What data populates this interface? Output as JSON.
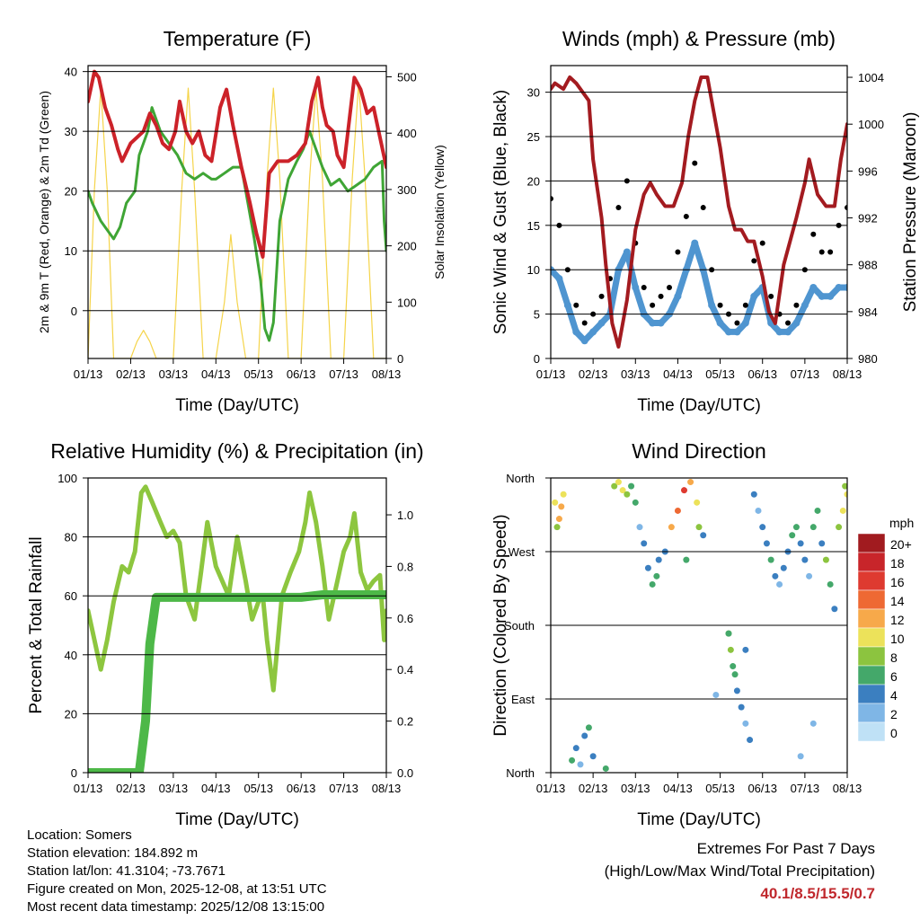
{
  "chart_data": [
    {
      "id": "temperature",
      "type": "line",
      "title": "Temperature (F)",
      "xlabel": "Time (Day/UTC)",
      "ylabel": "2m & 9m T (Red, Orange) & 2m Td (Green)",
      "y2label": "Solar Insolation (Yellow)",
      "categories": [
        "01/13",
        "02/13",
        "03/13",
        "04/13",
        "05/13",
        "06/13",
        "07/13",
        "08/13"
      ],
      "xlim": [
        0,
        7
      ],
      "ylim": [
        -8,
        41
      ],
      "y2lim": [
        0,
        520
      ],
      "yticks": [
        0,
        10,
        20,
        30,
        40
      ],
      "y2ticks": [
        0,
        100,
        200,
        300,
        400,
        500
      ],
      "colors": {
        "temp": "#cc2229",
        "dew": "#3fa535",
        "solar": "#f5d44a"
      },
      "series": [
        {
          "name": "2m & 9m T",
          "color": "#cc2229",
          "x": [
            0,
            0.15,
            0.25,
            0.4,
            0.55,
            0.7,
            0.8,
            1.0,
            1.3,
            1.45,
            1.6,
            1.75,
            1.9,
            2.05,
            2.15,
            2.3,
            2.45,
            2.6,
            2.75,
            2.9,
            3.1,
            3.25,
            3.4,
            3.6,
            3.8,
            3.95,
            4.1,
            4.25,
            4.45,
            4.7,
            4.9,
            5.1,
            5.25,
            5.4,
            5.5,
            5.6,
            5.75,
            5.85,
            6.0,
            6.1,
            6.25,
            6.4,
            6.55,
            6.7,
            6.85,
            7.0
          ],
          "values": [
            35,
            40,
            39,
            34,
            31,
            27,
            25,
            28,
            30,
            33,
            31,
            28,
            27,
            30,
            35,
            30,
            28,
            30,
            26,
            25,
            34,
            37,
            31,
            24,
            18,
            13,
            9,
            23,
            25,
            25,
            26,
            28,
            35,
            39,
            34,
            31,
            30,
            26,
            24,
            30,
            39,
            37,
            33,
            34,
            29,
            24
          ]
        },
        {
          "name": "2m Td",
          "color": "#3fa535",
          "x": [
            0,
            0.1,
            0.3,
            0.5,
            0.6,
            0.75,
            0.9,
            1.1,
            1.2,
            1.4,
            1.5,
            1.7,
            1.9,
            2.1,
            2.3,
            2.5,
            2.7,
            2.9,
            3.0,
            3.2,
            3.4,
            3.6,
            3.75,
            3.9,
            4.05,
            4.15,
            4.25,
            4.35,
            4.5,
            4.7,
            4.9,
            5.05,
            5.2,
            5.35,
            5.5,
            5.7,
            5.9,
            6.1,
            6.3,
            6.5,
            6.7,
            6.9,
            6.95,
            7.0
          ],
          "values": [
            20,
            18,
            15,
            13,
            12,
            14,
            18,
            20,
            26,
            30,
            34,
            30,
            28,
            26,
            23,
            22,
            23,
            22,
            22,
            23,
            24,
            24,
            18,
            12,
            5,
            -3,
            -5,
            -2,
            15,
            22,
            25,
            27,
            30,
            27,
            24,
            21,
            22,
            20,
            21,
            22,
            24,
            25,
            15,
            10
          ]
        },
        {
          "name": "Solar Insolation",
          "axis": "y2",
          "color": "#f5d44a",
          "x": [
            0,
            0.15,
            0.3,
            0.45,
            0.6,
            1.0,
            1.15,
            1.3,
            1.45,
            1.6,
            2.0,
            2.2,
            2.35,
            2.5,
            2.7,
            3.0,
            3.2,
            3.35,
            3.5,
            3.7,
            4.0,
            4.2,
            4.35,
            4.5,
            4.7,
            5.0,
            5.2,
            5.35,
            5.5,
            5.7,
            6.0,
            6.2,
            6.35,
            6.5,
            6.7,
            7.0
          ],
          "values": [
            0,
            300,
            480,
            300,
            0,
            0,
            30,
            50,
            30,
            0,
            0,
            300,
            480,
            300,
            0,
            0,
            100,
            220,
            100,
            0,
            0,
            320,
            480,
            320,
            0,
            0,
            320,
            480,
            320,
            0,
            0,
            320,
            490,
            320,
            0,
            0
          ]
        }
      ]
    },
    {
      "id": "winds",
      "type": "scatter",
      "title": "Winds (mph) & Pressure (mb)",
      "xlabel": "Time (Day/UTC)",
      "ylabel": "Sonic Wind & Gust (Blue, Black)",
      "y2label": "Station Pressure (Maroon)",
      "categories": [
        "01/13",
        "02/13",
        "03/13",
        "04/13",
        "05/13",
        "06/13",
        "07/13",
        "08/13"
      ],
      "xlim": [
        0,
        7
      ],
      "ylim": [
        0,
        33
      ],
      "y2lim": [
        980,
        1005
      ],
      "yticks": [
        0,
        5,
        10,
        15,
        20,
        25,
        30
      ],
      "y2ticks": [
        980,
        984,
        988,
        992,
        996,
        1000,
        1004
      ],
      "colors": {
        "wind": "#4f95d0",
        "gust": "#000000",
        "pressure": "#a31b20"
      },
      "series": [
        {
          "name": "Sonic Wind",
          "color": "#4f95d0",
          "x": [
            0,
            0.2,
            0.4,
            0.6,
            0.8,
            1.0,
            1.2,
            1.4,
            1.6,
            1.8,
            2.0,
            2.2,
            2.4,
            2.6,
            2.8,
            3.0,
            3.2,
            3.4,
            3.6,
            3.8,
            4.0,
            4.2,
            4.4,
            4.6,
            4.8,
            5.0,
            5.2,
            5.4,
            5.6,
            5.8,
            6.0,
            6.2,
            6.4,
            6.6,
            6.8,
            7.0
          ],
          "values": [
            10,
            9,
            6,
            3,
            2,
            3,
            4,
            5,
            10,
            12,
            8,
            5,
            4,
            4,
            5,
            7,
            10,
            13,
            10,
            6,
            4,
            3,
            3,
            4,
            7,
            8,
            4,
            3,
            3,
            4,
            6,
            8,
            7,
            7,
            8,
            8
          ]
        },
        {
          "name": "Gust",
          "color": "#000000",
          "x": [
            0,
            0.2,
            0.4,
            0.6,
            0.8,
            1.0,
            1.2,
            1.4,
            1.6,
            1.8,
            2.0,
            2.2,
            2.4,
            2.6,
            2.8,
            3.0,
            3.2,
            3.4,
            3.6,
            3.8,
            4.0,
            4.2,
            4.4,
            4.6,
            4.8,
            5.0,
            5.2,
            5.4,
            5.6,
            5.8,
            6.0,
            6.2,
            6.4,
            6.6,
            6.8,
            7.0
          ],
          "values": [
            18,
            15,
            10,
            6,
            4,
            5,
            7,
            9,
            17,
            20,
            13,
            8,
            6,
            7,
            8,
            12,
            16,
            22,
            17,
            10,
            6,
            5,
            4,
            6,
            11,
            13,
            7,
            5,
            4,
            6,
            10,
            14,
            12,
            12,
            15,
            17
          ]
        },
        {
          "name": "Station Pressure",
          "axis": "y2",
          "color": "#a31b20",
          "x": [
            0,
            0.1,
            0.3,
            0.45,
            0.6,
            0.9,
            1.0,
            1.2,
            1.3,
            1.45,
            1.6,
            1.8,
            2.0,
            2.2,
            2.35,
            2.5,
            2.7,
            2.9,
            3.1,
            3.25,
            3.4,
            3.55,
            3.7,
            3.85,
            4.0,
            4.2,
            4.35,
            4.5,
            4.65,
            4.8,
            5.0,
            5.15,
            5.3,
            5.5,
            5.8,
            6.0,
            6.1,
            6.3,
            6.5,
            6.7,
            6.85,
            7.0
          ],
          "values": [
            1003,
            1003.5,
            1003,
            1004,
            1003.5,
            1002,
            997,
            992,
            988,
            983,
            981,
            985,
            991,
            994,
            995,
            994,
            993,
            993,
            995,
            999,
            1002,
            1004,
            1004,
            1001,
            998,
            993,
            991,
            991,
            990,
            990,
            987,
            984,
            983,
            988,
            992,
            995,
            997,
            994,
            993,
            993,
            997,
            1000
          ]
        }
      ]
    },
    {
      "id": "humidity",
      "type": "line",
      "title": "Relative Humidity (%) & Precipitation (in)",
      "xlabel": "Time (Day/UTC)",
      "ylabel": "Percent & Total Rainfall",
      "categories": [
        "01/13",
        "02/13",
        "03/13",
        "04/13",
        "05/13",
        "06/13",
        "07/13",
        "08/13"
      ],
      "xlim": [
        0,
        7
      ],
      "ylim": [
        0,
        100
      ],
      "y2lim": [
        0,
        1.143
      ],
      "yticks": [
        0,
        20,
        40,
        60,
        80,
        100
      ],
      "y2ticks": [
        0.0,
        0.2,
        0.4,
        0.6,
        0.8,
        1.0
      ],
      "colors": {
        "rh": "#8dc63f",
        "precip": "#4db848"
      },
      "series": [
        {
          "name": "Relative Humidity",
          "color": "#8dc63f",
          "x": [
            0,
            0.15,
            0.3,
            0.45,
            0.6,
            0.8,
            0.95,
            1.1,
            1.25,
            1.35,
            1.5,
            1.7,
            1.85,
            2.0,
            2.15,
            2.3,
            2.5,
            2.65,
            2.8,
            3.0,
            3.15,
            3.3,
            3.5,
            3.7,
            3.85,
            4.0,
            4.1,
            4.2,
            4.35,
            4.55,
            4.75,
            4.95,
            5.1,
            5.2,
            5.35,
            5.5,
            5.65,
            5.85,
            6.0,
            6.15,
            6.25,
            6.4,
            6.55,
            6.7,
            6.85,
            6.95,
            7.0
          ],
          "values": [
            55,
            45,
            35,
            45,
            58,
            70,
            68,
            75,
            95,
            97,
            92,
            85,
            80,
            82,
            78,
            60,
            52,
            68,
            85,
            70,
            65,
            60,
            80,
            65,
            52,
            58,
            60,
            45,
            28,
            60,
            68,
            75,
            85,
            95,
            85,
            70,
            52,
            65,
            75,
            80,
            88,
            68,
            62,
            65,
            67,
            45,
            55
          ]
        },
        {
          "name": "Total Rainfall",
          "axis": "y2",
          "color": "#4db848",
          "x": [
            0,
            0.5,
            1.0,
            1.2,
            1.35,
            1.45,
            1.6,
            2.0,
            3.0,
            4.0,
            4.5,
            5.0,
            5.5,
            6.0,
            7.0
          ],
          "values": [
            0,
            0,
            0,
            0,
            0.2,
            0.5,
            0.68,
            0.68,
            0.68,
            0.68,
            0.68,
            0.68,
            0.69,
            0.69,
            0.69
          ]
        }
      ]
    },
    {
      "id": "direction",
      "type": "scatter",
      "title": "Wind Direction",
      "xlabel": "Time (Day/UTC)",
      "ylabel": "Direction (Colored By Speed)",
      "categories": [
        "01/13",
        "02/13",
        "03/13",
        "04/13",
        "05/13",
        "06/13",
        "07/13",
        "08/13"
      ],
      "xlim": [
        0,
        7
      ],
      "ylim": [
        0,
        360
      ],
      "yticks": [
        0,
        90,
        180,
        270,
        360
      ],
      "yticklabels": [
        "North",
        "East",
        "South",
        "West",
        "North"
      ],
      "legend": {
        "unit": "mph",
        "labels": [
          "20+",
          "18",
          "16",
          "14",
          "12",
          "10",
          "8",
          "6",
          "4",
          "2",
          "0"
        ],
        "colors": [
          "#a11b1f",
          "#c8252a",
          "#de3a30",
          "#ee6933",
          "#f7a94a",
          "#ece25a",
          "#8cc43f",
          "#44a86a",
          "#3b7fc0",
          "#7fb6e6",
          "#bfe1f6"
        ]
      },
      "series": [
        {
          "name": "Direction",
          "x": [
            0.1,
            0.2,
            0.3,
            0.15,
            0.25,
            0.6,
            0.8,
            0.9,
            1.0,
            0.7,
            0.5,
            1.5,
            1.6,
            1.7,
            1.8,
            1.9,
            2.0,
            2.1,
            2.2,
            2.3,
            2.4,
            2.5,
            2.55,
            2.7,
            2.85,
            3.0,
            3.15,
            3.3,
            3.45,
            3.5,
            3.6,
            3.2,
            4.2,
            4.25,
            4.3,
            4.4,
            4.5,
            4.6,
            4.7,
            4.2,
            4.35,
            4.8,
            4.9,
            5.0,
            5.1,
            5.2,
            5.3,
            5.4,
            5.5,
            5.6,
            5.7,
            5.8,
            5.9,
            6.0,
            6.1,
            6.2,
            6.3,
            6.4,
            6.5,
            6.6,
            6.7,
            6.8,
            6.9,
            7.0,
            6.95,
            5.9,
            6.2,
            4.6,
            3.9,
            1.3
          ],
          "y": [
            330,
            310,
            340,
            300,
            325,
            30,
            45,
            55,
            20,
            10,
            15,
            350,
            355,
            345,
            340,
            350,
            330,
            300,
            280,
            250,
            230,
            240,
            260,
            270,
            300,
            320,
            345,
            355,
            330,
            300,
            290,
            260,
            170,
            150,
            130,
            100,
            80,
            60,
            40,
            170,
            120,
            340,
            320,
            300,
            280,
            260,
            240,
            230,
            250,
            270,
            290,
            300,
            280,
            260,
            240,
            300,
            320,
            280,
            260,
            230,
            200,
            300,
            320,
            340,
            350,
            20,
            60,
            150,
            95,
            5
          ],
          "speed": [
            10,
            12,
            9,
            8,
            11,
            3,
            4,
            5,
            3,
            2,
            6,
            8,
            9,
            10,
            7,
            6,
            5,
            2,
            3,
            4,
            5,
            6,
            4,
            3,
            12,
            14,
            16,
            12,
            10,
            8,
            4,
            5,
            7,
            8,
            6,
            4,
            3,
            2,
            4,
            6,
            5,
            3,
            2,
            3,
            4,
            5,
            3,
            2,
            4,
            3,
            5,
            6,
            4,
            3,
            2,
            5,
            6,
            4,
            7,
            5,
            3,
            8,
            9,
            10,
            8,
            2,
            1,
            4,
            2,
            6
          ]
        }
      ]
    }
  ],
  "info": {
    "location": "Location: Somers",
    "elevation": "Station elevation: 184.892 m",
    "latlon": "Station lat/lon: 41.3104; -73.7671",
    "created": "Figure created on Mon, 2025-12-08, at 13:51 UTC",
    "recent": "Most recent data timestamp: 2025/12/08 13:15:00"
  },
  "extremes": {
    "title": "Extremes For Past 7 Days",
    "subtitle": "(High/Low/Max Wind/Total Precipitation)",
    "values": "40.1/8.5/15.5/0.7",
    "color": "#c0282d"
  }
}
